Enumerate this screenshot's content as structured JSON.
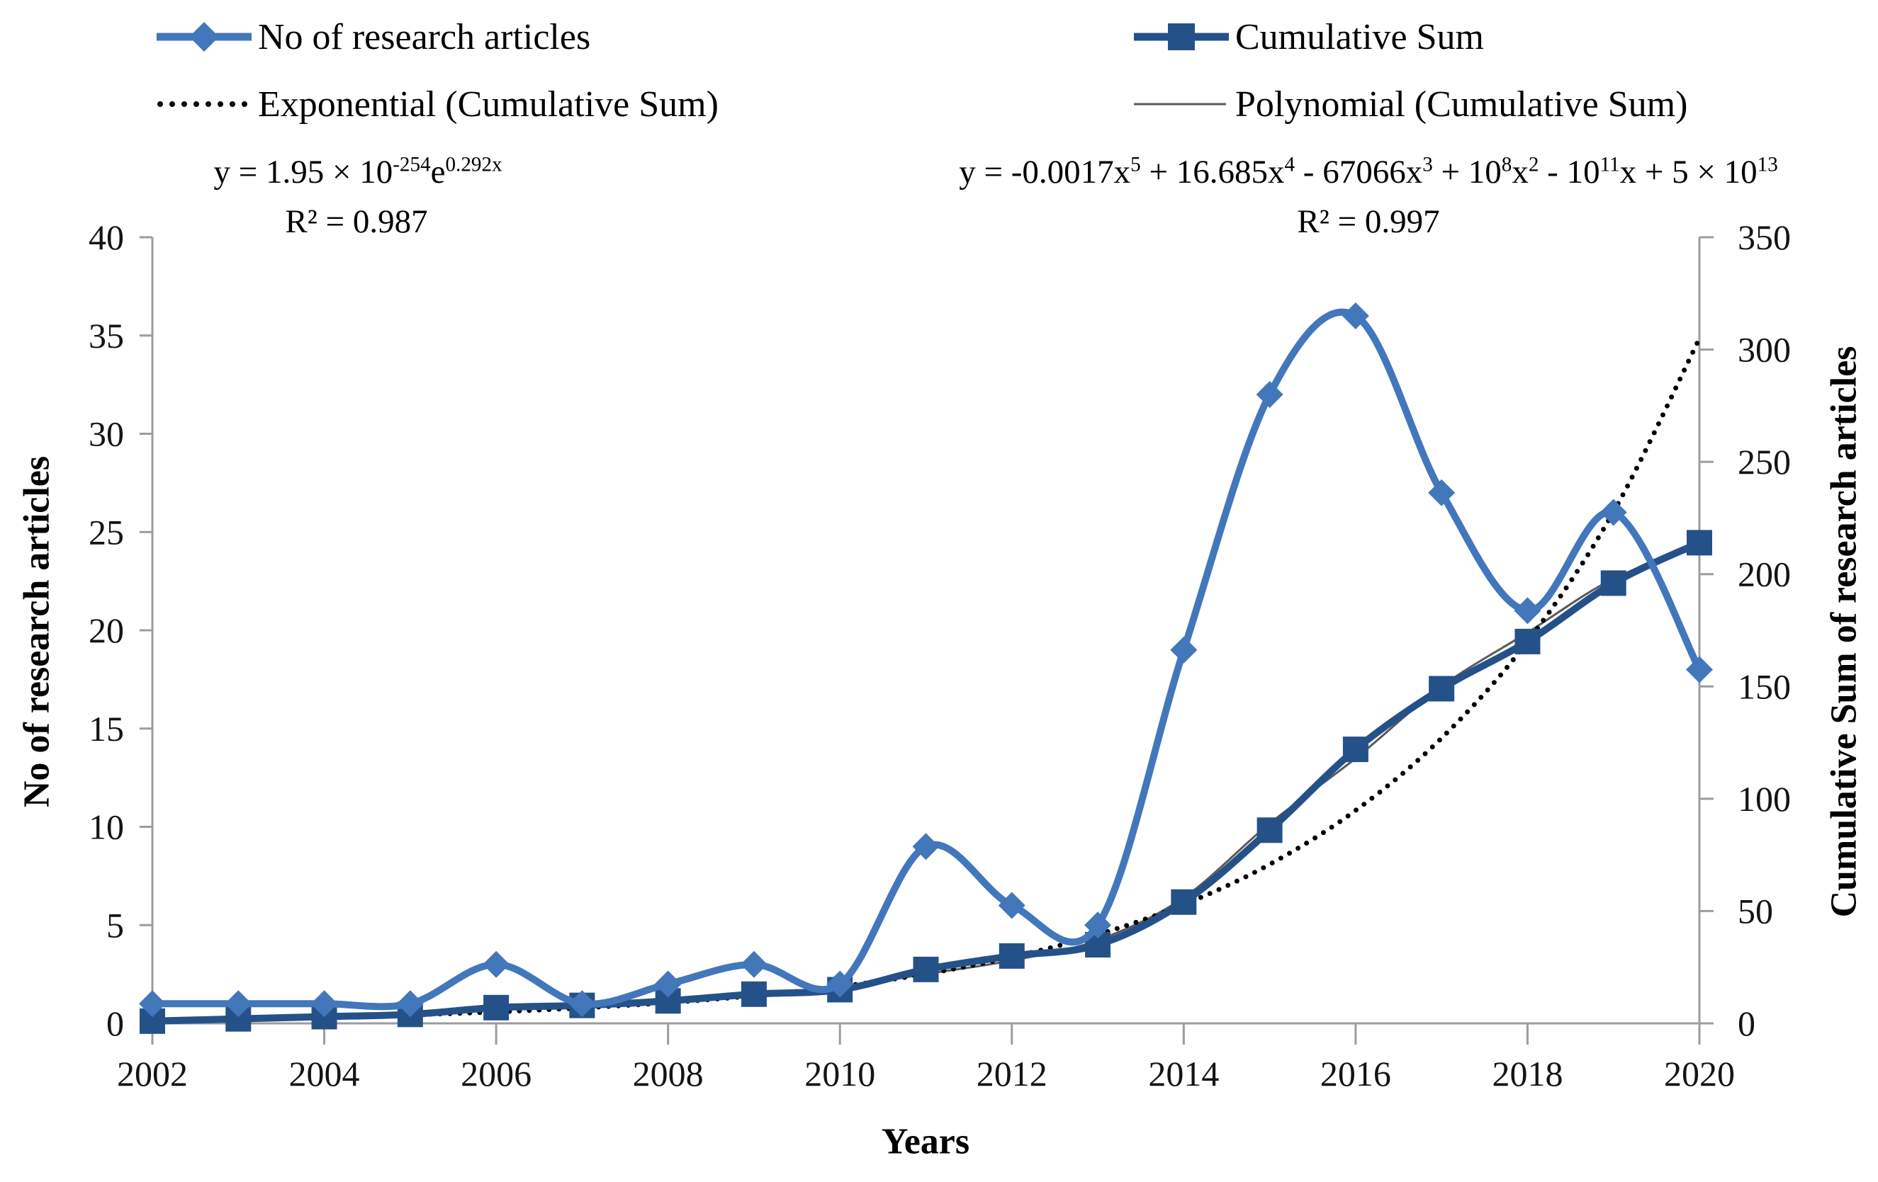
{
  "legend": {
    "series1": "No of research articles",
    "series2": "Cumulative Sum",
    "trend1": "Exponential (Cumulative Sum)",
    "trend2": "Polynomial (Cumulative Sum)"
  },
  "equations": {
    "exponential": {
      "runs": [
        {
          "t": "y = 1.95 × 10"
        },
        {
          "t": "-254",
          "sup": true
        },
        {
          "t": "e"
        },
        {
          "t": "0.292x",
          "sup": true
        }
      ],
      "r2": "R² = 0.987"
    },
    "polynomial": {
      "runs": [
        {
          "t": "y = -0.0017x"
        },
        {
          "t": "5",
          "sup": true
        },
        {
          "t": " + 16.685x"
        },
        {
          "t": "4",
          "sup": true
        },
        {
          "t": " - 67066x"
        },
        {
          "t": "3",
          "sup": true
        },
        {
          "t": " + 10"
        },
        {
          "t": "8",
          "sup": true
        },
        {
          "t": "x"
        },
        {
          "t": "2",
          "sup": true
        },
        {
          "t": " - 10"
        },
        {
          "t": "11",
          "sup": true
        },
        {
          "t": "x + 5 × 10"
        },
        {
          "t": "13",
          "sup": true
        }
      ],
      "r2": "R² = 0.997"
    }
  },
  "colors": {
    "articles_blue": "#4377bb",
    "cumulative_navy": "#255189",
    "exponential_black": "#000000",
    "polynomial_gray": "#595959",
    "axis_gray": "#9c9c9c",
    "text_black": "#141414"
  },
  "chart_data": {
    "type": "line",
    "title": "",
    "x": [
      2002,
      2003,
      2004,
      2005,
      2006,
      2007,
      2008,
      2009,
      2010,
      2011,
      2012,
      2013,
      2014,
      2015,
      2016,
      2017,
      2018,
      2019,
      2020
    ],
    "series": [
      {
        "name": "No of research articles",
        "axis": "left",
        "color": "#4377bb",
        "marker": "diamond",
        "style": "solid",
        "values": [
          1,
          1,
          1,
          1,
          3,
          1,
          2,
          3,
          2,
          9,
          6,
          5,
          19,
          32,
          36,
          27,
          21,
          26,
          18
        ]
      },
      {
        "name": "Cumulative Sum",
        "axis": "right",
        "color": "#255189",
        "marker": "square",
        "style": "solid",
        "values": [
          1,
          2,
          3,
          4,
          7,
          8,
          10,
          13,
          15,
          24,
          30,
          35,
          54,
          86,
          122,
          149,
          170,
          196,
          214
        ]
      },
      {
        "name": "Exponential (Cumulative Sum)",
        "axis": "right",
        "color": "#000000",
        "marker": "none",
        "style": "dotted",
        "trendline": true,
        "values": [
          1.6,
          2.1,
          2.9,
          3.8,
          5.1,
          6.9,
          9.2,
          12.3,
          16.4,
          22.0,
          29.5,
          39.5,
          52.9,
          70.8,
          94.8,
          127.0,
          170.0,
          227.7,
          304.9
        ]
      },
      {
        "name": "Polynomial (Cumulative Sum)",
        "axis": "right",
        "color": "#595959",
        "marker": "none",
        "style": "thin",
        "trendline": true,
        "values": [
          2.0,
          1.8,
          2.5,
          4.0,
          6.0,
          8.0,
          11.0,
          13.5,
          16.0,
          22.0,
          28.0,
          37.0,
          56.0,
          89.0,
          118.0,
          150.0,
          174.0,
          198.0,
          212.0
        ]
      }
    ],
    "x_axis": {
      "title": "Years",
      "min": 2002,
      "max": 2020,
      "tick_step": 2
    },
    "y_left": {
      "title": "No of research articles",
      "min": 0,
      "max": 40,
      "tick_step": 5
    },
    "y_right": {
      "title": "Cumulative Sum of research articles",
      "min": 0,
      "max": 350,
      "tick_step": 50
    },
    "grid": false,
    "legend_position": "top"
  }
}
